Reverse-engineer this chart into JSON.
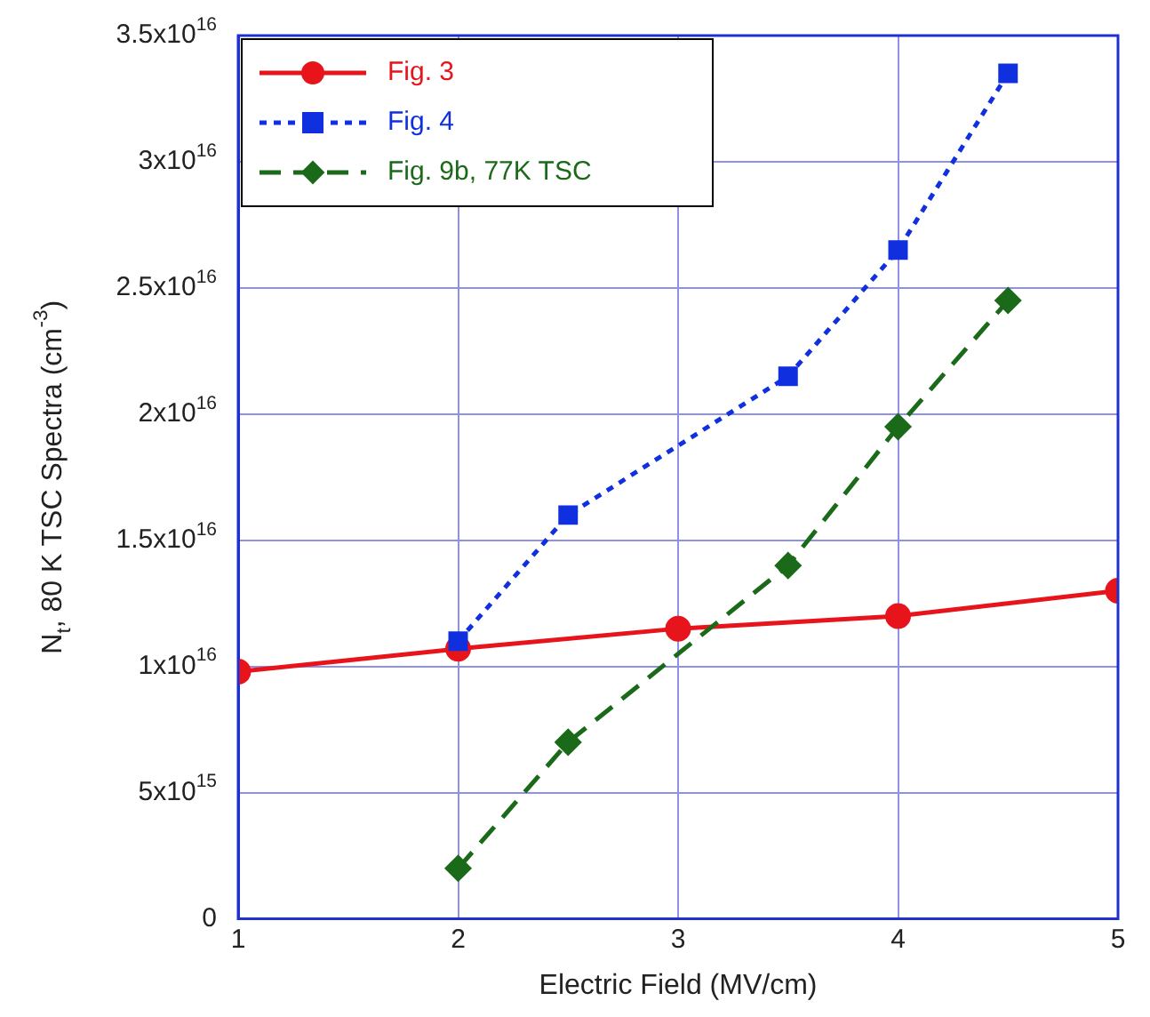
{
  "chart_data": {
    "type": "line",
    "xlabel": "Electric Field (MV/cm)",
    "ylabel": "N$_{t}$, 80 K TSC Spectra (cm$^{-3}$)",
    "xlim": [
      1,
      5
    ],
    "xticks": [
      1,
      2,
      3,
      4,
      5
    ],
    "ylim": [
      0,
      3.5e+16
    ],
    "yticks": [
      0,
      {
        "value": 5000000000000000.0,
        "label": "5x10$^{15}$"
      },
      {
        "value": 1e+16,
        "label": "1x10$^{16}$"
      },
      {
        "value": 1.5e+16,
        "label": "1.5x10$^{16}$"
      },
      {
        "value": 2e+16,
        "label": "2x10$^{16}$"
      },
      {
        "value": 2.5e+16,
        "label": "2.5x10$^{16}$"
      },
      {
        "value": 3e+16,
        "label": "3x10$^{16}$"
      },
      {
        "value": 3.5e+16,
        "label": "3.5x10$^{16}$"
      }
    ],
    "grid": true,
    "legend": "top left",
    "series": [
      {
        "name": "Fig. 3",
        "color": "#e8141c",
        "x": [
          1,
          2,
          3,
          4,
          5
        ],
        "values": [
          9800000000000000.0,
          1.07e+16,
          1.15e+16,
          1.2e+16,
          1.3e+16
        ],
        "marker": "circle",
        "line_style": "solid"
      },
      {
        "name": "Fig. 4",
        "color": "#1030e0",
        "x": [
          2,
          2.5,
          3.5,
          4,
          4.5
        ],
        "values": [
          1.1e+16,
          1.6e+16,
          2.15e+16,
          2.65e+16,
          3.35e+16
        ],
        "marker": "square",
        "line_style": "dotted"
      },
      {
        "name": "Fig. 9b, 77K TSC",
        "color": "#1a6a1a",
        "x": [
          2,
          2.5,
          3.5,
          4,
          4.5
        ],
        "values": [
          2000000000000000.0,
          7000000000000000.0,
          1.4e+16,
          1.95e+16,
          2.45e+16
        ],
        "marker": "diamond",
        "line_style": "dashed"
      }
    ]
  }
}
